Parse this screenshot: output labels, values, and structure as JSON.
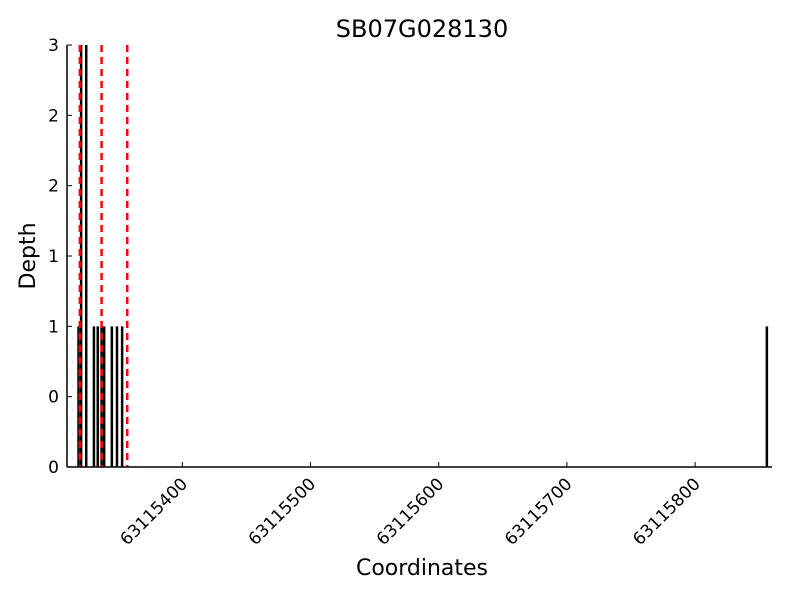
{
  "chart_data": {
    "type": "bar",
    "title": "SB07G028130",
    "xlabel": "Coordinates",
    "ylabel": "Depth",
    "xlim": [
      63115310,
      63115860
    ],
    "ylim": [
      0,
      3
    ],
    "x_ticks": [
      63115400,
      63115500,
      63115600,
      63115700,
      63115800
    ],
    "y_ticks": [
      0,
      0.5,
      1,
      1.5,
      2,
      2.5,
      3
    ],
    "y_tick_labels": [
      "0",
      "0",
      "1",
      "1",
      "2",
      "2",
      "3"
    ],
    "series": [
      {
        "x": [
          63115319,
          63115321,
          63115325,
          63115331,
          63115334,
          63115337,
          63115339,
          63115345,
          63115349,
          63115353,
          63115856
        ],
        "values": [
          1,
          3,
          3,
          1,
          1,
          1,
          1,
          1,
          1,
          1,
          1
        ],
        "color": "#000000"
      }
    ],
    "reference_lines": {
      "x": [
        63115320,
        63115337,
        63115357
      ],
      "color": "#ff0000",
      "style": "dashed"
    },
    "grid": false
  }
}
